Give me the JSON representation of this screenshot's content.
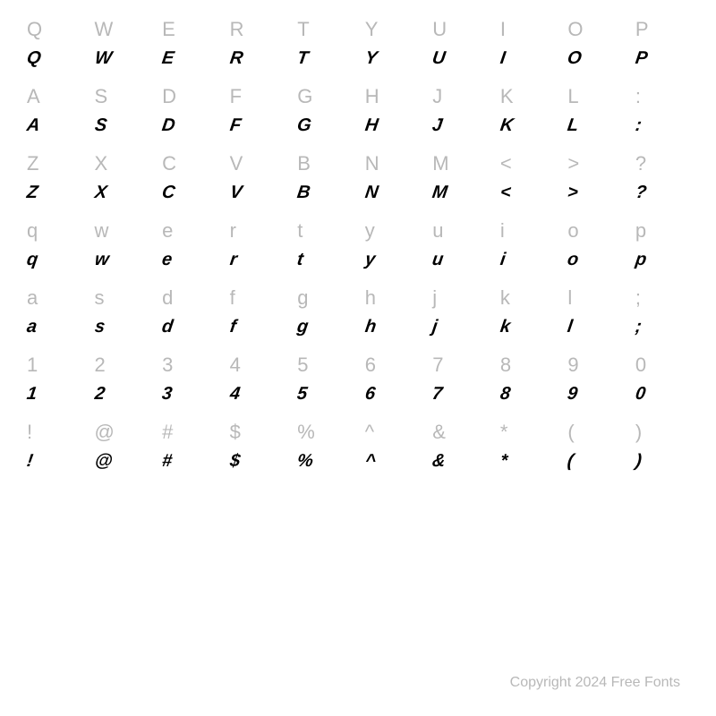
{
  "rows": [
    {
      "labels": [
        "Q",
        "W",
        "E",
        "R",
        "T",
        "Y",
        "U",
        "I",
        "O",
        "P"
      ],
      "glyphs": [
        "Q",
        "W",
        "E",
        "R",
        "T",
        "Y",
        "U",
        "I",
        "O",
        "P"
      ]
    },
    {
      "labels": [
        "A",
        "S",
        "D",
        "F",
        "G",
        "H",
        "J",
        "K",
        "L",
        ":"
      ],
      "glyphs": [
        "A",
        "S",
        "D",
        "F",
        "G",
        "H",
        "J",
        "K",
        "L",
        ":"
      ]
    },
    {
      "labels": [
        "Z",
        "X",
        "C",
        "V",
        "B",
        "N",
        "M",
        "<",
        ">",
        "?"
      ],
      "glyphs": [
        "Z",
        "X",
        "C",
        "V",
        "B",
        "N",
        "M",
        "<",
        ">",
        "?"
      ]
    },
    {
      "labels": [
        "q",
        "w",
        "e",
        "r",
        "t",
        "y",
        "u",
        "i",
        "o",
        "p"
      ],
      "glyphs": [
        "q",
        "w",
        "e",
        "r",
        "t",
        "y",
        "u",
        "i",
        "o",
        "p"
      ]
    },
    {
      "labels": [
        "a",
        "s",
        "d",
        "f",
        "g",
        "h",
        "j",
        "k",
        "l",
        ";"
      ],
      "glyphs": [
        "a",
        "s",
        "d",
        "f",
        "g",
        "h",
        "j",
        "k",
        "l",
        ";"
      ]
    },
    {
      "labels": [
        "1",
        "2",
        "3",
        "4",
        "5",
        "6",
        "7",
        "8",
        "9",
        "0"
      ],
      "glyphs": [
        "1",
        "2",
        "3",
        "4",
        "5",
        "6",
        "7",
        "8",
        "9",
        "0"
      ]
    },
    {
      "labels": [
        "!",
        "@",
        "#",
        "$",
        "%",
        "^",
        "&",
        "*",
        "(",
        ")"
      ],
      "glyphs": [
        "!",
        "@",
        "#",
        "$",
        "%",
        "^",
        "&",
        "*",
        "(",
        ")"
      ]
    }
  ],
  "copyright": "Copyright 2024 Free Fonts",
  "colors": {
    "label": "#b8b8b8",
    "glyph": "#000000",
    "background": "#ffffff"
  },
  "typography": {
    "label_fontsize": 22,
    "glyph_fontsize": 20,
    "copyright_fontsize": 16,
    "glyph_weight": 900,
    "glyph_style": "italic"
  }
}
